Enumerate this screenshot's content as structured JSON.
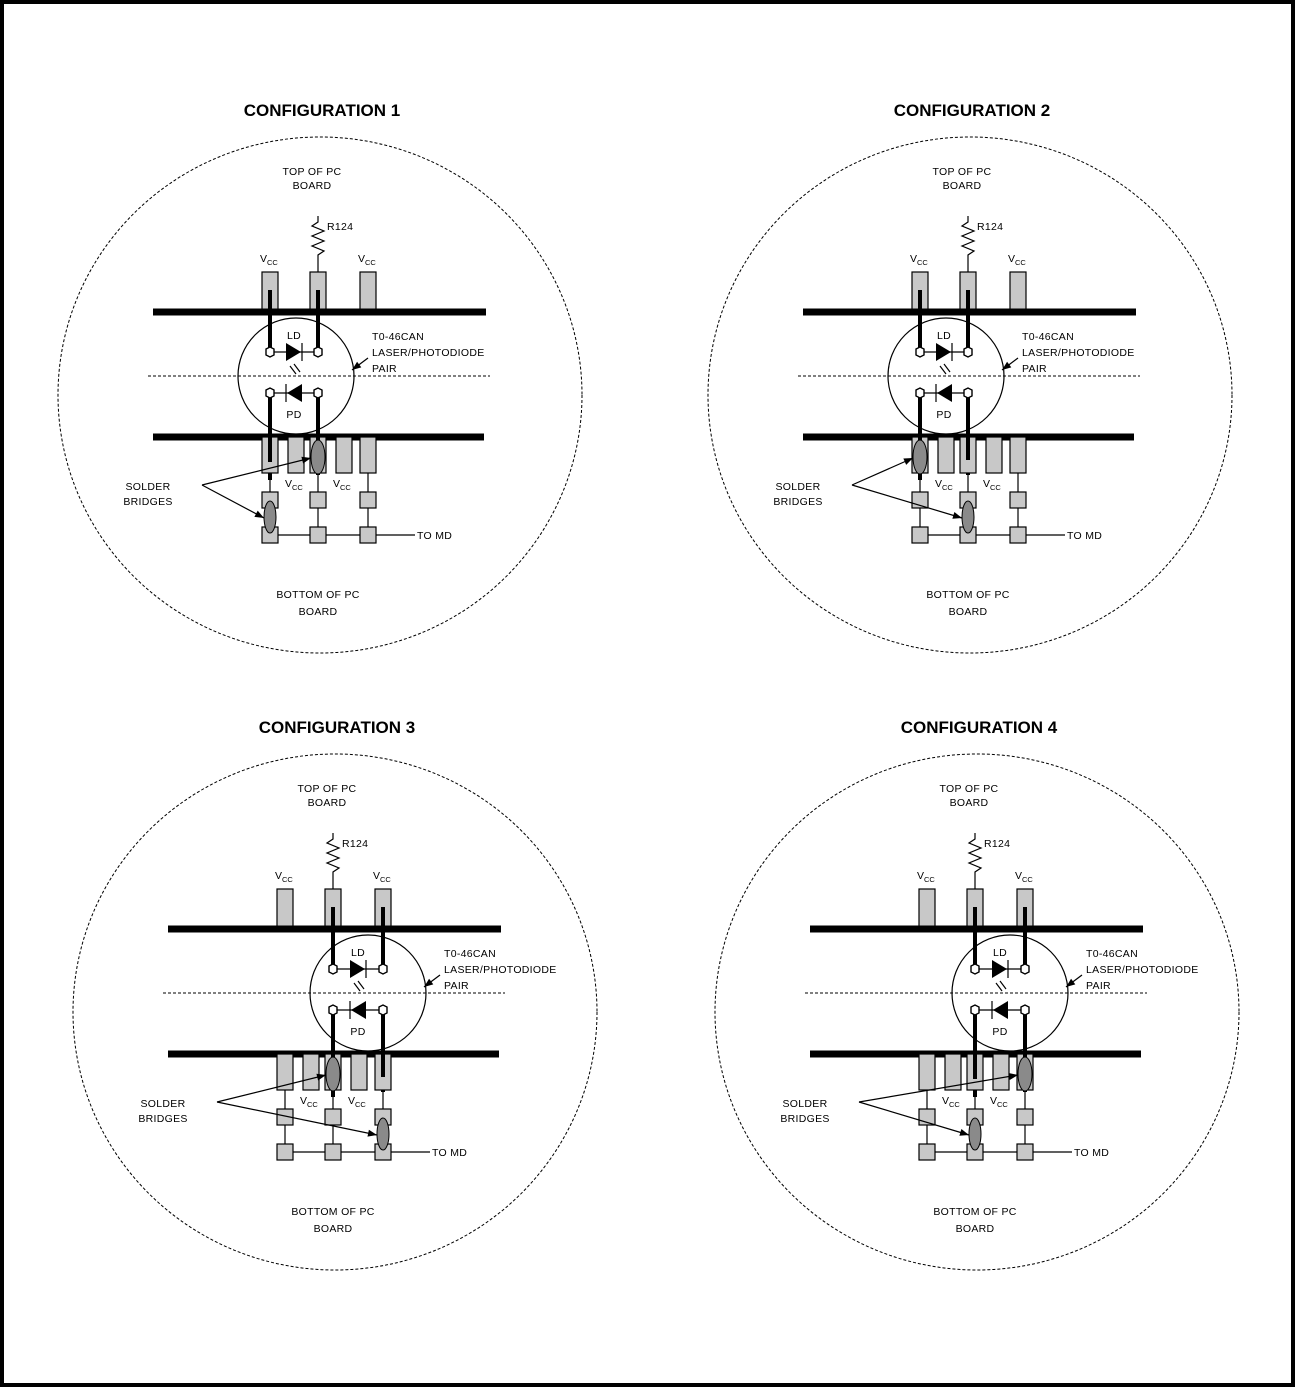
{
  "colors": {
    "pad": "#c8c8c8",
    "bridge": "#8a8a8a",
    "ink": "#000000"
  },
  "labels": {
    "top_line1": "TOP OF PC",
    "top_line2": "BOARD",
    "bottom_line1": "BOTTOM OF PC",
    "bottom_line2": "BOARD",
    "resistor": "R124",
    "vcc_main": "V",
    "vcc_sub": "CC",
    "ld": "LD",
    "pd": "PD",
    "can_line1": "T0-46CAN",
    "can_line2": "LASER/PHOTODIODE",
    "can_line3": "PAIR",
    "solder_line1": "SOLDER",
    "solder_line2": "BRIDGES",
    "to_md": "TO MD"
  },
  "configurations": [
    {
      "title": "CONFIGURATION 1",
      "can_position": "left",
      "upper_bridge_pad": 2,
      "lower_bridge_pad": 1
    },
    {
      "title": "CONFIGURATION 2",
      "can_position": "left",
      "upper_bridge_pad": 1,
      "lower_bridge_pad": 2
    },
    {
      "title": "CONFIGURATION 3",
      "can_position": "right",
      "upper_bridge_pad": 2,
      "lower_bridge_pad": 3
    },
    {
      "title": "CONFIGURATION 4",
      "can_position": "right",
      "upper_bridge_pad": 3,
      "lower_bridge_pad": 2
    }
  ]
}
